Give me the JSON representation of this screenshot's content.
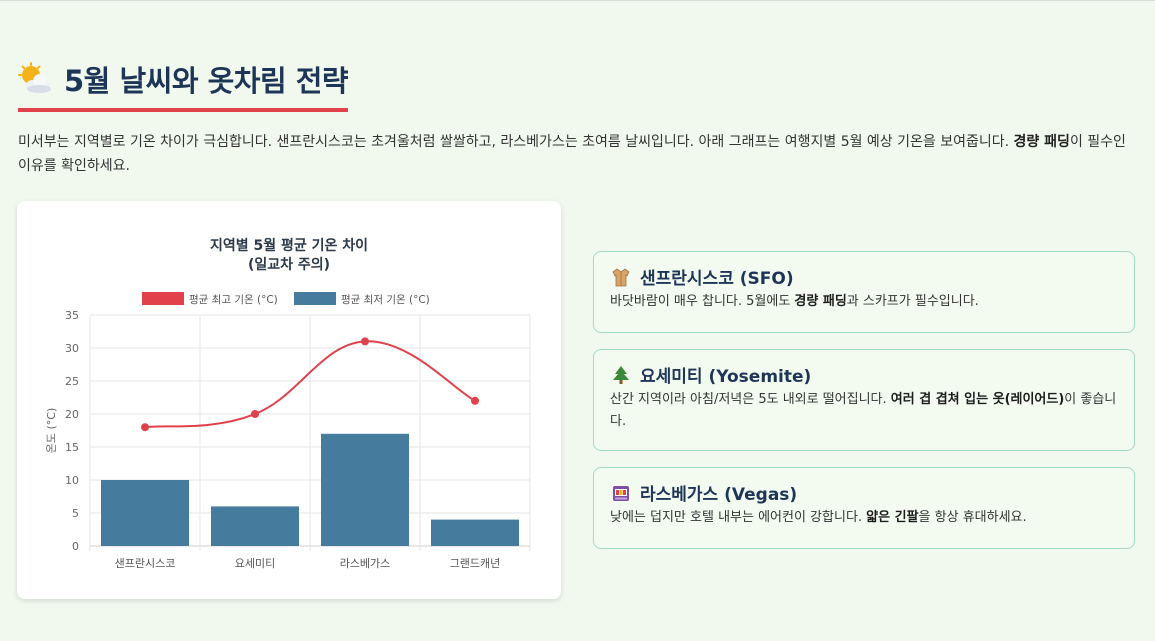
{
  "page": {
    "title": "5월 날씨와 옷차림 전략",
    "title_icon": "sun-behind-cloud-icon",
    "intro": {
      "text1": "미서부는 지역별로 기온 차이가 극심합니다. 샌프란시스코는 초겨울처럼 쌀쌀하고, 라스베가스는 초여름 날씨입니다. 아래 그래프는 여행지별 5월 예상 기온을 보여줍니다. ",
      "bold": "경량 패딩",
      "text2": "이 필수인 이유를 확인하세요."
    }
  },
  "tips": [
    {
      "icon": "coat-icon",
      "title": "샌프란시스코 (SFO)",
      "body1": "바닷바람이 매우 찹니다. 5월에도 ",
      "bold": "경량 패딩",
      "body2": "과 스카프가 필수입니다."
    },
    {
      "icon": "evergreen-tree-icon",
      "title": "요세미티 (Yosemite)",
      "body1": "산간 지역이라 아침/저녁은 5도 내외로 떨어집니다. ",
      "bold": "여러 겹 겹쳐 입는 옷(레이어드)",
      "body2": "이 좋습니다."
    },
    {
      "icon": "slot-machine-icon",
      "title": "라스베가스 (Vegas)",
      "body1": "낮에는 덥지만 호텔 내부는 에어컨이 강합니다. ",
      "bold": "얇은 긴팔",
      "body2": "을 항상 휴대하세요."
    }
  ],
  "colors": {
    "max_line": "#e0414b",
    "min_bar": "#457b9d",
    "title": "#1d3557",
    "accent_underline": "#e0414b"
  },
  "chart_data": {
    "type": "bar",
    "title": [
      "지역별 5월 평균 기온 차이",
      "(일교차 주의)"
    ],
    "categories": [
      "샌프란시스코",
      "요세미티",
      "라스베가스",
      "그랜드캐년"
    ],
    "series": [
      {
        "name": "평균 최고 기온 (°C)",
        "type": "line",
        "color": "#e0414b",
        "values": [
          18,
          20,
          31,
          22
        ]
      },
      {
        "name": "평균 최저 기온 (°C)",
        "type": "bar",
        "color": "#457b9d",
        "values": [
          10,
          6,
          17,
          4
        ]
      }
    ],
    "ylabel": "온도 (°C)",
    "xlabel": "",
    "ylim": [
      0,
      35
    ],
    "yticks": [
      0,
      5,
      10,
      15,
      20,
      25,
      30,
      35
    ],
    "grid": true,
    "legend": "top"
  }
}
